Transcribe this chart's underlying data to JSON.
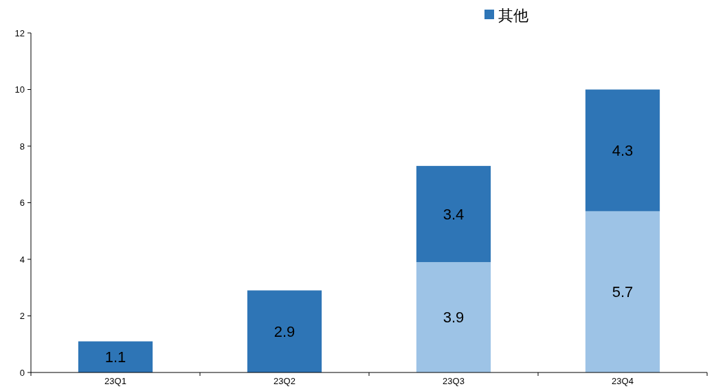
{
  "chart_data": {
    "type": "bar",
    "stacked": true,
    "categories": [
      "23Q1",
      "23Q2",
      "23Q3",
      "23Q4"
    ],
    "series": [
      {
        "color": "#9dc3e6",
        "values": [
          null,
          null,
          3.9,
          5.7
        ]
      },
      {
        "name": "其他",
        "color": "#2e75b6",
        "values": [
          1.1,
          2.9,
          3.4,
          4.3
        ]
      }
    ],
    "ylim": [
      0,
      12
    ],
    "yticks": [
      0,
      2,
      4,
      6,
      8,
      10,
      12
    ],
    "data_labels": true,
    "legend": "top",
    "grid": false
  }
}
